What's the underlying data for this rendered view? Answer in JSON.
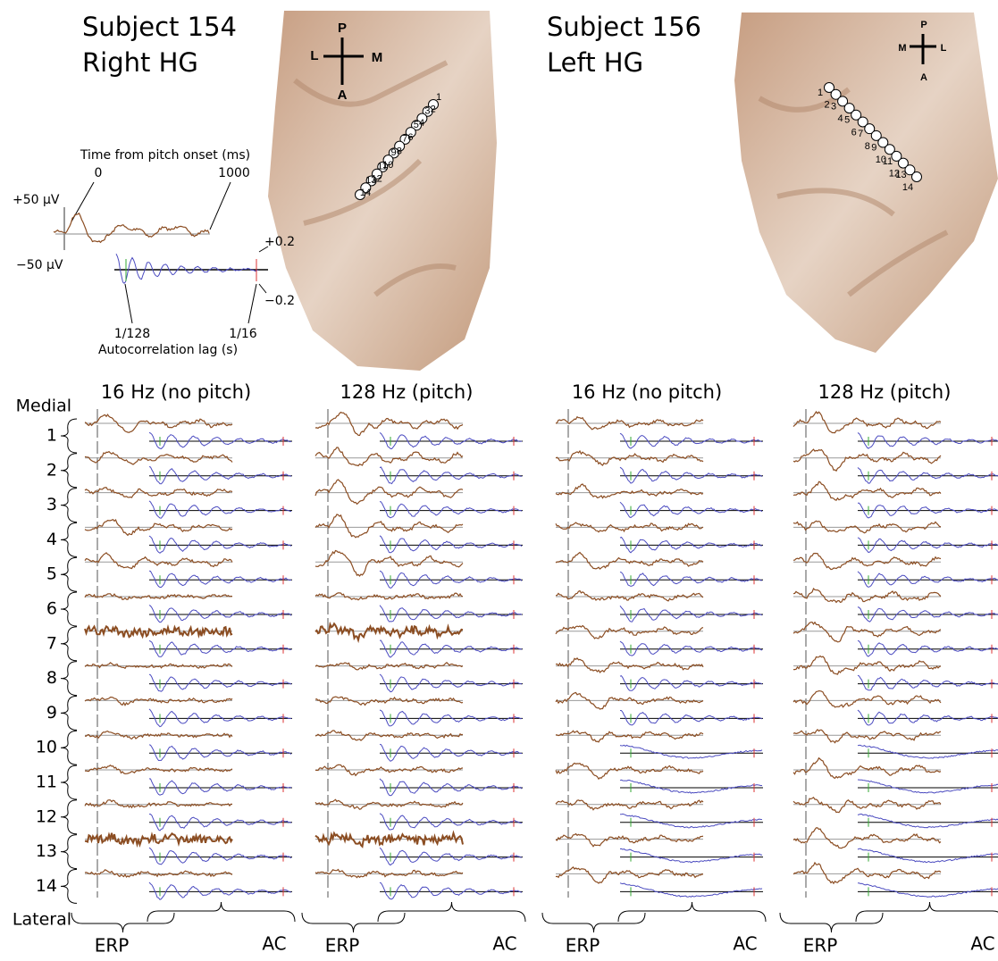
{
  "panels": [
    {
      "subject": "Subject 154",
      "hemisphere": "Right HG",
      "orientation": {
        "top": "P",
        "left": "L",
        "right": "M",
        "bottom": "A"
      },
      "electrodes": [
        "1",
        "2",
        "3",
        "4",
        "5",
        "6",
        "7",
        "8",
        "9",
        "10",
        "11",
        "12",
        "13",
        "14"
      ],
      "conditions": [
        "16 Hz (no pitch)",
        "128 Hz (pitch)"
      ]
    },
    {
      "subject": "Subject 156",
      "hemisphere": "Left HG",
      "orientation": {
        "top": "P",
        "left": "M",
        "right": "L",
        "bottom": "A"
      },
      "electrodes": [
        "1",
        "2",
        "3",
        "4",
        "5",
        "6",
        "7",
        "8",
        "9",
        "10",
        "11",
        "12",
        "13",
        "14"
      ],
      "conditions": [
        "16 Hz (no pitch)",
        "128 Hz (pitch)"
      ]
    }
  ],
  "legend": {
    "time_axis": "Time from pitch onset (ms)",
    "t_start": "0",
    "t_end": "1000",
    "erp_pos": "+50 µV",
    "erp_neg": "−50 µV",
    "ac_pos": "+0.2",
    "ac_neg": "−0.2",
    "lag_start": "1/128",
    "lag_end": "1/16",
    "lag_axis": "Autocorrelation lag (s)"
  },
  "rows": {
    "top": "Medial",
    "bottom": "Lateral",
    "labels": [
      "1",
      "2",
      "3",
      "4",
      "5",
      "6",
      "7",
      "8",
      "9",
      "10",
      "11",
      "12",
      "13",
      "14"
    ]
  },
  "brackets": {
    "erp": "ERP",
    "ac": "AC"
  }
}
